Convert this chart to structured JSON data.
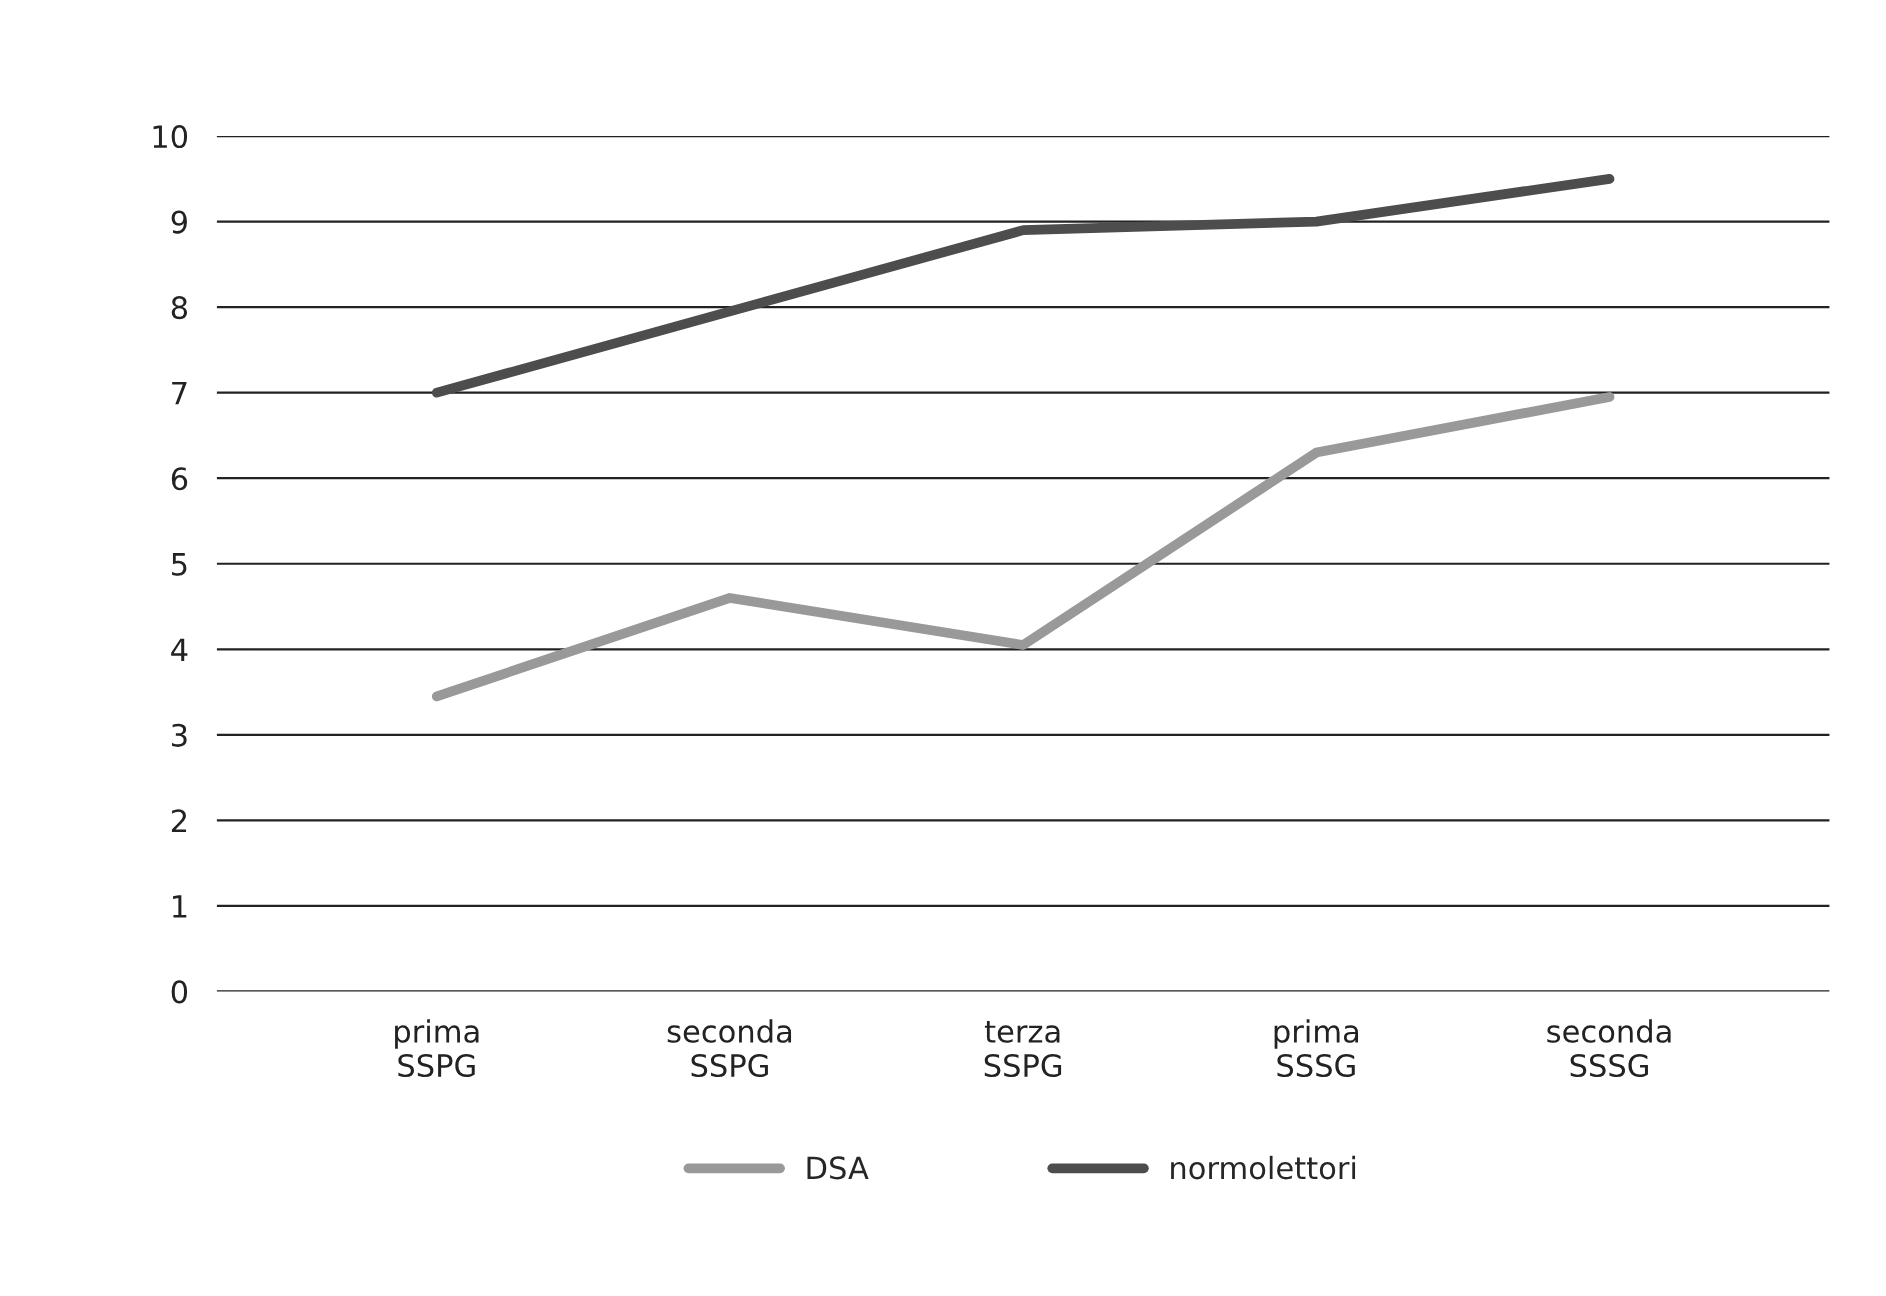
{
  "chart_data": {
    "type": "line",
    "categories": [
      "prima\nSSPG",
      "seconda\nSSPG",
      "terza\nSSPG",
      "prima\nSSSG",
      "seconda\nSSSG"
    ],
    "series": [
      {
        "name": "DSA",
        "color": "#999999",
        "values": [
          3.45,
          4.6,
          4.05,
          6.3,
          6.95
        ]
      },
      {
        "name": "normolettori",
        "color": "#4d4d4d",
        "values": [
          7.0,
          7.95,
          8.9,
          9.0,
          9.5
        ]
      }
    ],
    "ylim": [
      0,
      10
    ],
    "yticks": [
      0,
      1,
      2,
      3,
      4,
      5,
      6,
      7,
      8,
      9,
      10
    ],
    "grid": "y",
    "legend": "bottom",
    "marker": "none",
    "line_style": "solid"
  }
}
